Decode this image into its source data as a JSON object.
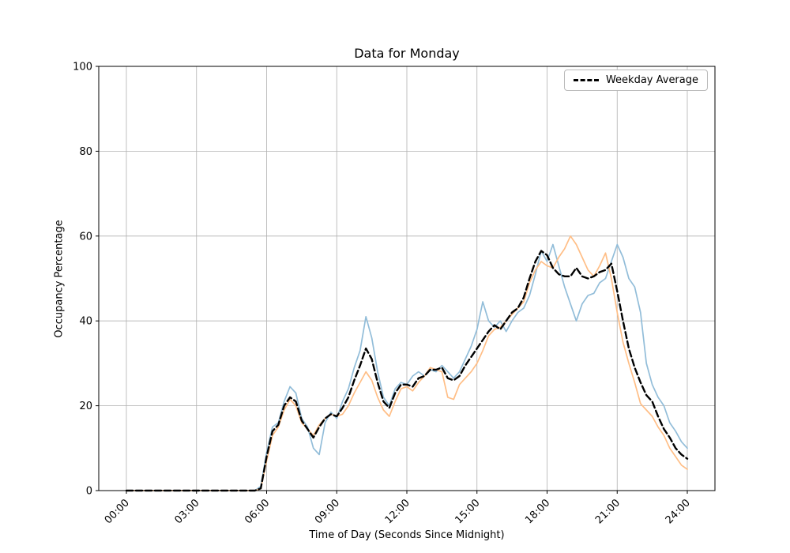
{
  "chart_data": {
    "type": "line",
    "title": "Data for Monday",
    "xlabel": "Time of Day (Seconds Since Midnight)",
    "ylabel": "Occupancy Percentage",
    "ylim": [
      0,
      100
    ],
    "xlim_hours": [
      0,
      24
    ],
    "grid": true,
    "legend_position": "upper right",
    "legend": [
      {
        "label": "Weekday Average",
        "style": "dashed",
        "color": "#000000"
      }
    ],
    "y_ticks": [
      0,
      20,
      40,
      60,
      80,
      100
    ],
    "x_tick_hours": [
      0,
      3,
      6,
      9,
      12,
      15,
      18,
      21,
      24
    ],
    "x_tick_labels": [
      "00:00",
      "03:00",
      "06:00",
      "09:00",
      "12:00",
      "15:00",
      "18:00",
      "21:00",
      "24:00"
    ],
    "colors": {
      "grid": "#b0b0b0",
      "axis": "#000000",
      "blue_line": "#92bdd9",
      "orange_line": "#ffbe86",
      "average_line": "#000000"
    },
    "x_step_hours": 0.25,
    "x_start_hours": 0,
    "series": [
      {
        "name": "monday-blue",
        "color": "#92bdd9",
        "width": 1.7,
        "dash": "none",
        "values": [
          0,
          0,
          0,
          0,
          0,
          0,
          0,
          0,
          0,
          0,
          0,
          0,
          0,
          0,
          0,
          0,
          0,
          0,
          0,
          0,
          0,
          0,
          0,
          1,
          9,
          15,
          16,
          21,
          24.5,
          23,
          17,
          15,
          10,
          8.5,
          16,
          18.5,
          17,
          21,
          24,
          29,
          33,
          41,
          36,
          28,
          22,
          20,
          24,
          25.5,
          25,
          27,
          28,
          27,
          28.5,
          28,
          29.5,
          28,
          26.5,
          28,
          31,
          34,
          38,
          44.5,
          40,
          38.5,
          40,
          37.5,
          40,
          42,
          43,
          46,
          51,
          56.5,
          54,
          58,
          53,
          48,
          44,
          40,
          44,
          46,
          46.5,
          49,
          50,
          54,
          58,
          55,
          50,
          48,
          42,
          30,
          25,
          22,
          20,
          16,
          14,
          11.5,
          10
        ]
      },
      {
        "name": "monday-orange",
        "color": "#ffbe86",
        "width": 1.7,
        "dash": "none",
        "values": [
          0,
          0,
          0,
          0,
          0,
          0,
          0,
          0,
          0,
          0,
          0,
          0,
          0,
          0,
          0,
          0,
          0,
          0,
          0,
          0,
          0,
          0,
          0,
          0.5,
          7,
          13,
          15,
          19,
          21.5,
          20,
          16,
          14.5,
          13,
          15.5,
          17,
          18,
          17.5,
          18,
          20,
          23,
          25.5,
          28,
          26,
          22,
          19,
          17.5,
          21,
          24,
          24.5,
          23.5,
          25.5,
          27,
          29,
          28.5,
          28,
          22,
          21.5,
          25,
          26.5,
          28,
          30,
          33,
          36.5,
          38,
          38.5,
          40,
          41.5,
          43,
          44.5,
          49,
          52,
          54,
          53,
          52.5,
          55,
          57,
          60,
          58,
          55,
          52,
          50.5,
          53,
          56,
          50,
          42,
          35,
          30,
          25.5,
          20.5,
          19,
          17.5,
          15,
          13,
          10,
          8,
          6,
          5
        ]
      },
      {
        "name": "weekday-average",
        "color": "#000000",
        "width": 2.4,
        "dash": "8 4",
        "values": [
          0,
          0,
          0,
          0,
          0,
          0,
          0,
          0,
          0,
          0,
          0,
          0,
          0,
          0,
          0,
          0,
          0,
          0,
          0,
          0,
          0,
          0,
          0,
          0.5,
          8,
          14,
          15.5,
          20,
          22,
          21,
          16.5,
          14.5,
          12.5,
          15,
          17,
          18,
          17.5,
          19.5,
          22,
          26,
          29.5,
          33.5,
          31,
          25.5,
          21,
          19.5,
          23,
          25,
          25,
          24.5,
          26.5,
          27,
          28.5,
          28.5,
          29,
          26.5,
          26,
          27,
          29.5,
          31.5,
          33.5,
          35.5,
          37.5,
          39,
          38,
          40,
          42,
          43,
          45.5,
          50,
          54,
          56.5,
          55.5,
          52.5,
          51,
          50.5,
          50.5,
          52.5,
          50.5,
          50,
          50.5,
          51.5,
          52,
          53.5,
          47,
          40,
          33.5,
          29,
          25.5,
          22.5,
          21,
          17.5,
          14.5,
          12.5,
          10,
          8.5,
          7.5
        ]
      }
    ]
  }
}
